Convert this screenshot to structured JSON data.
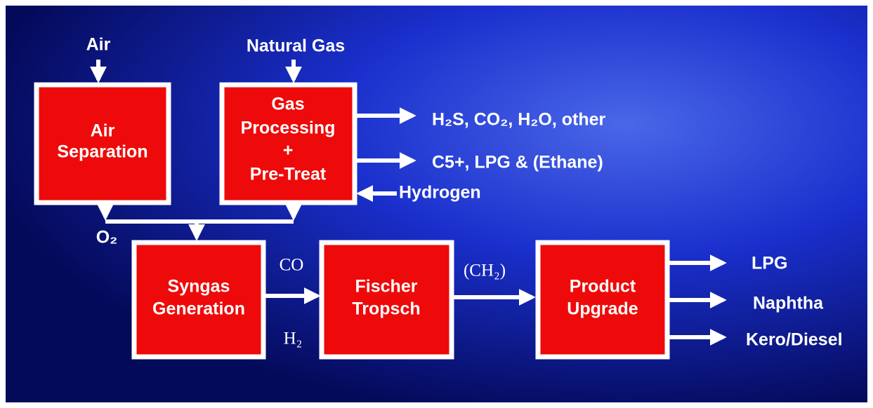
{
  "inputs": {
    "air": "Air",
    "natural_gas": "Natural Gas",
    "hydrogen": "Hydrogen"
  },
  "nodes": [
    {
      "label": [
        "Air",
        "Separation"
      ]
    },
    {
      "label": [
        "Gas",
        "Processing",
        "+",
        "Pre-Treat"
      ]
    },
    {
      "label": [
        "Syngas",
        "Generation"
      ]
    },
    {
      "label": [
        "Fischer",
        "Tropsch"
      ]
    },
    {
      "label": [
        "Product",
        "Upgrade"
      ]
    }
  ],
  "streams": {
    "byproducts": "H₂S, CO₂, H₂O, other",
    "liquids": "C5+, LPG & (Ethane)",
    "oxygen": "O₂",
    "co": "CO",
    "h2": "H₂",
    "ch2": "(CH₂)"
  },
  "products": [
    "LPG",
    "Naphtha",
    "Kero/Diesel"
  ]
}
